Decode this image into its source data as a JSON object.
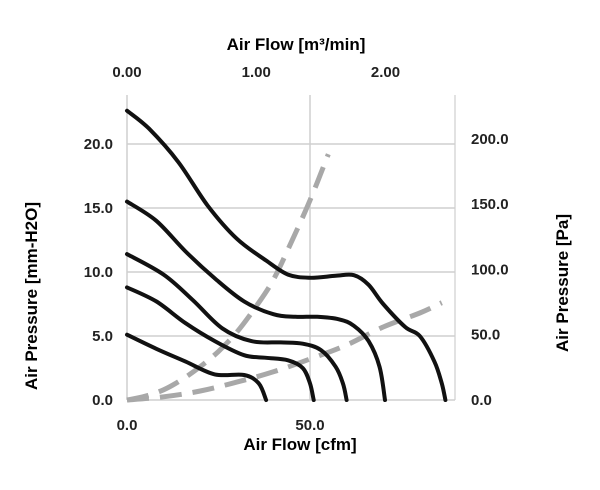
{
  "chart_data": {
    "type": "line",
    "title": "",
    "x_bottom": {
      "label": "Air Flow [cfm]",
      "range": [
        0,
        88
      ],
      "ticks": [
        0,
        50
      ],
      "tick_labels": [
        "0.0",
        "50.0"
      ]
    },
    "x_top": {
      "label": "Air Flow [m³/min]",
      "ticks": [
        0,
        1,
        2
      ],
      "tick_labels": [
        "0.00",
        "1.00",
        "2.00"
      ]
    },
    "y_left": {
      "label": "Air Pressure [mm-H2O]",
      "range": [
        0,
        24
      ],
      "ticks": [
        0,
        5,
        10,
        15,
        20
      ],
      "tick_labels": [
        "0.0",
        "5.0",
        "10.0",
        "15.0",
        "20.0"
      ]
    },
    "y_right": {
      "label": "Air Pressure [Pa]",
      "ticks": [
        0,
        50,
        100,
        150,
        200
      ],
      "tick_labels": [
        "0.0",
        "50.0",
        "100.0",
        "150.0",
        "200.0"
      ]
    },
    "grid": true,
    "legend": "none",
    "colors": {
      "fan_curve": "#111111",
      "impedance": "#a8a8a8",
      "grid": "#cfcfcf"
    },
    "series": [
      {
        "style": "solid",
        "points": [
          [
            0,
            22.6
          ],
          [
            6,
            21.2
          ],
          [
            14,
            18.6
          ],
          [
            22,
            15.2
          ],
          [
            30,
            12.6
          ],
          [
            38,
            10.9
          ],
          [
            44,
            9.8
          ],
          [
            50,
            9.55
          ],
          [
            57,
            9.7
          ],
          [
            62,
            9.75
          ],
          [
            66,
            9.0
          ],
          [
            70,
            7.5
          ],
          [
            76,
            5.7
          ],
          [
            80,
            5.0
          ],
          [
            84,
            3.0
          ],
          [
            86,
            1.3
          ],
          [
            87,
            0
          ]
        ]
      },
      {
        "style": "solid",
        "points": [
          [
            0,
            15.5
          ],
          [
            8,
            14.0
          ],
          [
            16,
            11.6
          ],
          [
            24,
            9.5
          ],
          [
            32,
            7.7
          ],
          [
            40,
            6.7
          ],
          [
            46,
            6.5
          ],
          [
            52,
            6.5
          ],
          [
            58,
            6.3
          ],
          [
            62,
            5.8
          ],
          [
            66,
            4.6
          ],
          [
            69,
            2.6
          ],
          [
            70.5,
            0
          ]
        ]
      },
      {
        "style": "solid",
        "points": [
          [
            0,
            11.4
          ],
          [
            10,
            9.8
          ],
          [
            18,
            7.8
          ],
          [
            26,
            5.6
          ],
          [
            34,
            4.6
          ],
          [
            42,
            4.5
          ],
          [
            48,
            4.4
          ],
          [
            53,
            3.9
          ],
          [
            57,
            2.6
          ],
          [
            59,
            1.3
          ],
          [
            60,
            0
          ]
        ]
      },
      {
        "style": "solid",
        "points": [
          [
            0,
            8.8
          ],
          [
            8,
            7.7
          ],
          [
            16,
            6.0
          ],
          [
            24,
            4.6
          ],
          [
            32,
            3.5
          ],
          [
            38,
            3.3
          ],
          [
            44,
            3.1
          ],
          [
            48,
            2.5
          ],
          [
            50,
            1.3
          ],
          [
            51,
            0
          ]
        ]
      },
      {
        "style": "solid",
        "points": [
          [
            0,
            5.1
          ],
          [
            8,
            4.0
          ],
          [
            16,
            3.0
          ],
          [
            24,
            2.0
          ],
          [
            32,
            1.95
          ],
          [
            36,
            1.3
          ],
          [
            38,
            0
          ]
        ]
      },
      {
        "style": "dashed",
        "points": [
          [
            0,
            0
          ],
          [
            5,
            0.3
          ],
          [
            10,
            0.8
          ],
          [
            15,
            1.6
          ],
          [
            20,
            2.6
          ],
          [
            25,
            3.8
          ],
          [
            30,
            5.3
          ],
          [
            35,
            7.2
          ],
          [
            40,
            9.4
          ],
          [
            45,
            12.4
          ],
          [
            50,
            15.6
          ],
          [
            55,
            19.2
          ]
        ]
      },
      {
        "style": "dashed",
        "points": [
          [
            0,
            0
          ],
          [
            10,
            0.25
          ],
          [
            20,
            0.7
          ],
          [
            30,
            1.4
          ],
          [
            40,
            2.2
          ],
          [
            50,
            3.2
          ],
          [
            60,
            4.3
          ],
          [
            70,
            5.7
          ],
          [
            80,
            6.8
          ],
          [
            86,
            7.6
          ]
        ]
      }
    ]
  }
}
